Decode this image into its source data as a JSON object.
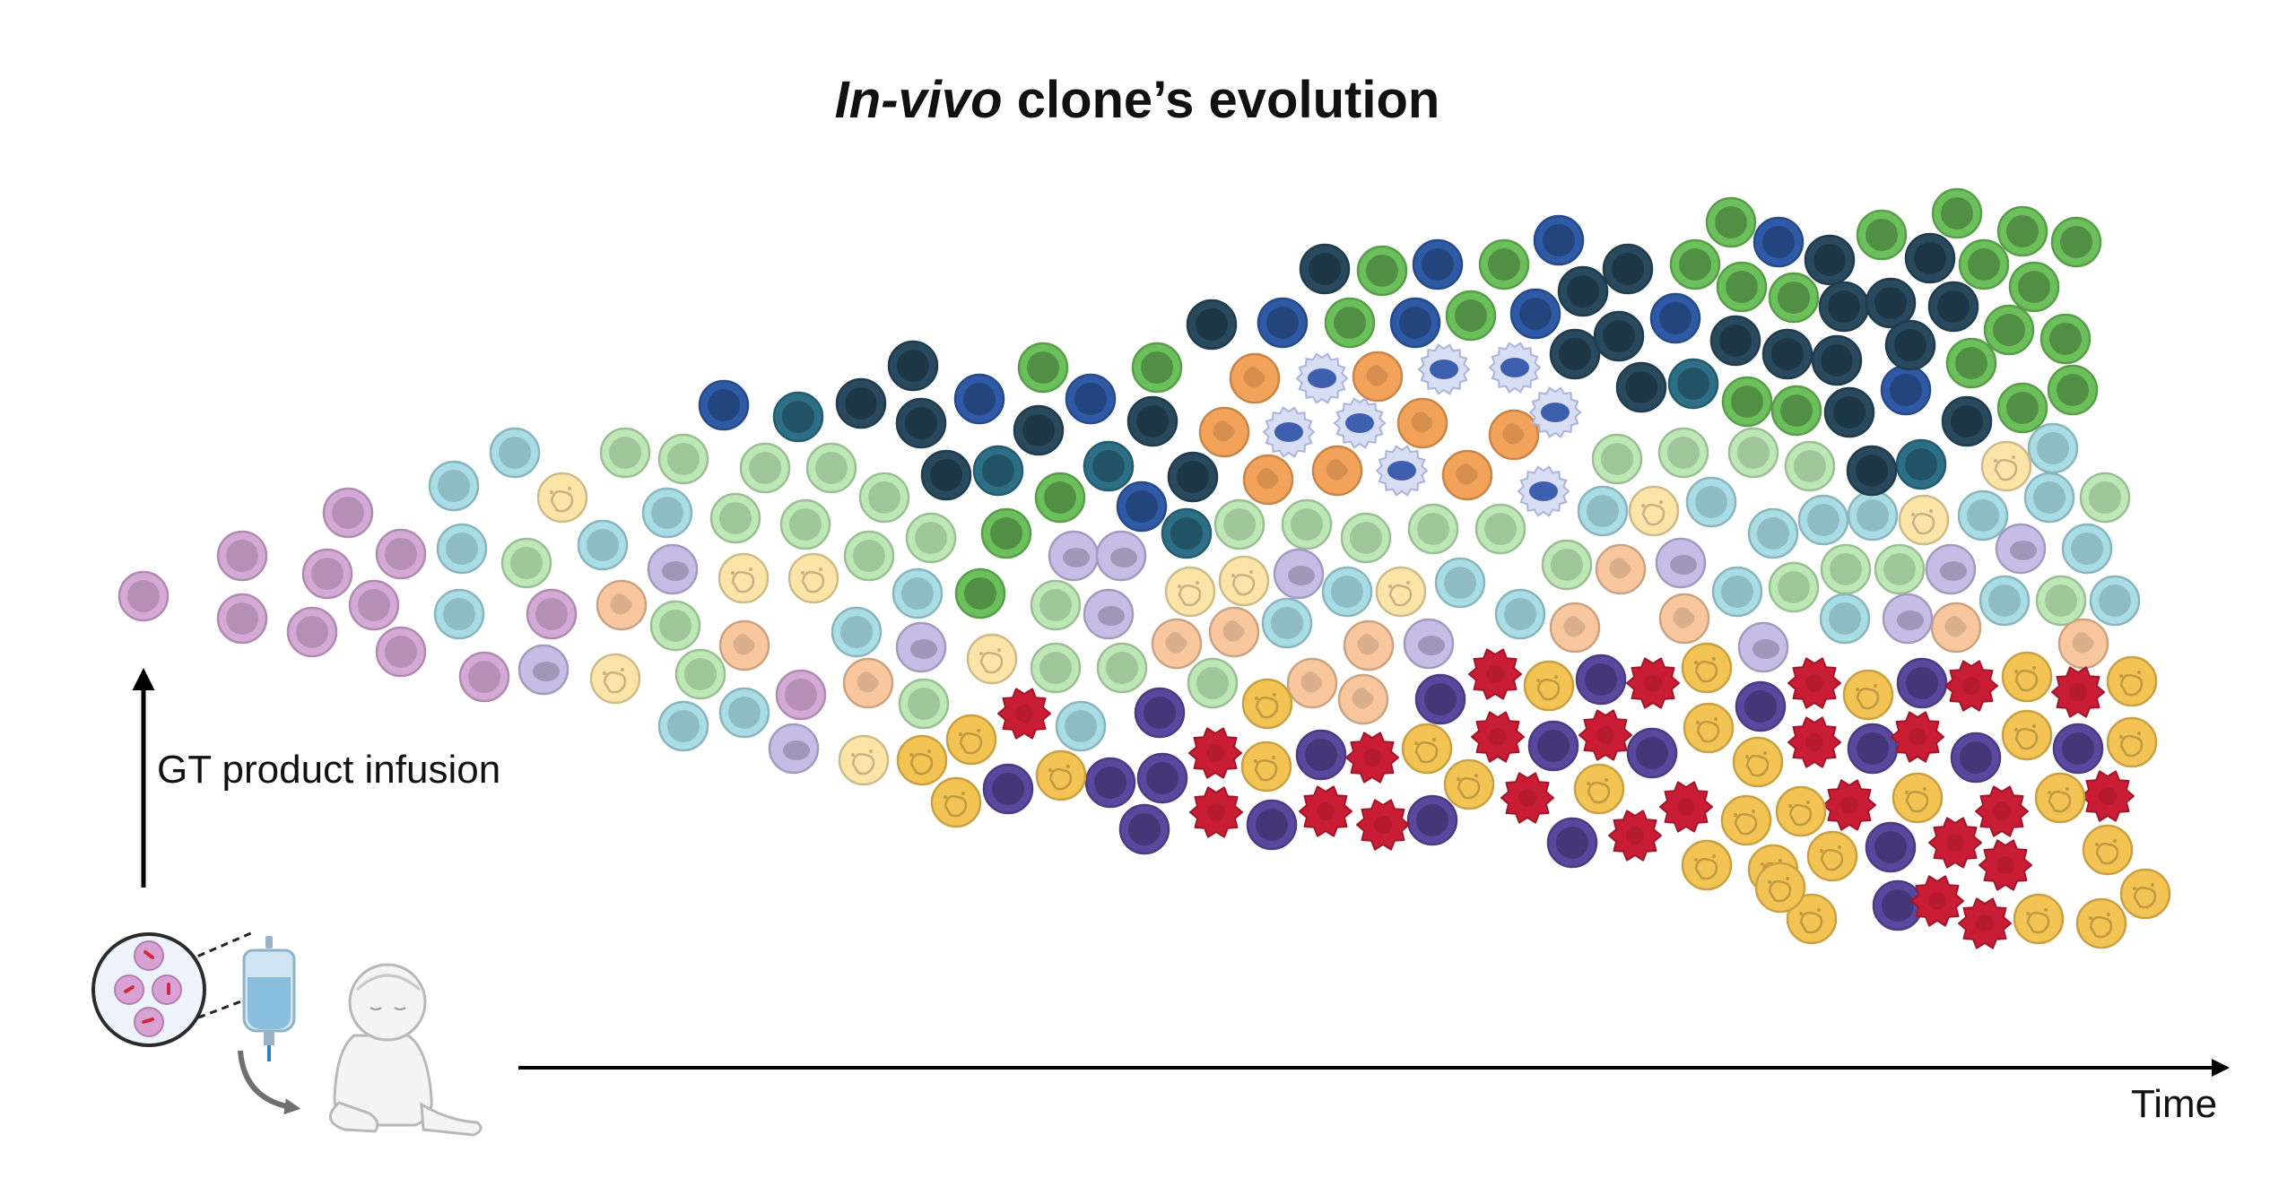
{
  "title": {
    "italic": "In-vivo",
    "rest": " clone’s evolution"
  },
  "labels": {
    "infusion": "GT product infusion",
    "time": "Time"
  },
  "colors": {
    "pink": "#d4a9d6",
    "lightblue": "#a8dde6",
    "lightgreen": "#bde8b6",
    "paleyellow": "#fbe4a8",
    "lightorange": "#f8c79e",
    "lightpurple": "#c5bde6",
    "darkblue": "#2f5aa6",
    "teal": "#2d6f86",
    "darkteal": "#28495e",
    "green": "#6cc05b",
    "orange": "#f3a25a",
    "mast": "#98a5d6",
    "purple": "#5a489e",
    "red": "#c81d35",
    "gold": "#f3c453"
  },
  "icons": [
    "cell-zoom-icon",
    "iv-bag-icon",
    "baby-icon",
    "curved-arrow-icon"
  ]
}
